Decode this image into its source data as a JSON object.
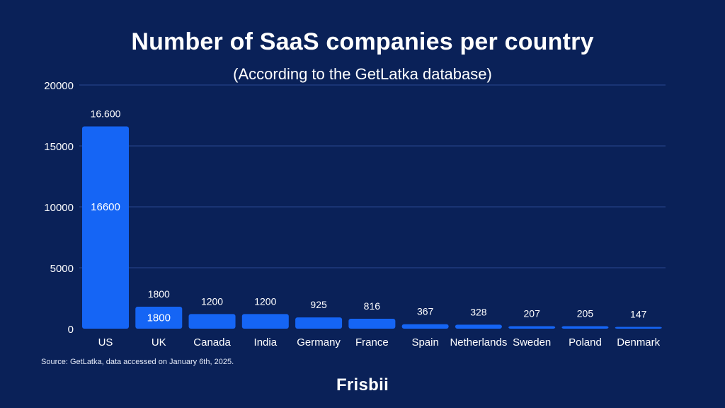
{
  "header": {
    "title": "Number of SaaS companies per country",
    "subtitle": "(According to the GetLatka database)"
  },
  "chart_data": {
    "type": "bar",
    "title": "Number of SaaS companies per country",
    "subtitle": "(According to the GetLatka database)",
    "categories": [
      "US",
      "UK",
      "Canada",
      "India",
      "Germany",
      "France",
      "Spain",
      "Netherlands",
      "Sweden",
      "Poland",
      "Denmark"
    ],
    "values": [
      16600,
      1800,
      1200,
      1200,
      925,
      816,
      367,
      328,
      207,
      205,
      147
    ],
    "labels_above": [
      "16.600",
      "1800",
      "1200",
      "1200",
      "925",
      "816",
      "367",
      "328",
      "207",
      "205",
      "147"
    ],
    "labels_inside": [
      "16600",
      "1800",
      "",
      "",
      "",
      "",
      "",
      "",
      "",
      "",
      ""
    ],
    "yticks": [
      0,
      5000,
      10000,
      15000,
      20000
    ],
    "ylim": [
      0,
      20000
    ],
    "xlabel": "",
    "ylabel": "",
    "grid": true,
    "bar_color": "#1565f5",
    "grid_color": "#2a4690"
  },
  "footer": {
    "source": "Source: GetLatka, data accessed on January 6th, 2025.",
    "logo": "Frisbii"
  }
}
